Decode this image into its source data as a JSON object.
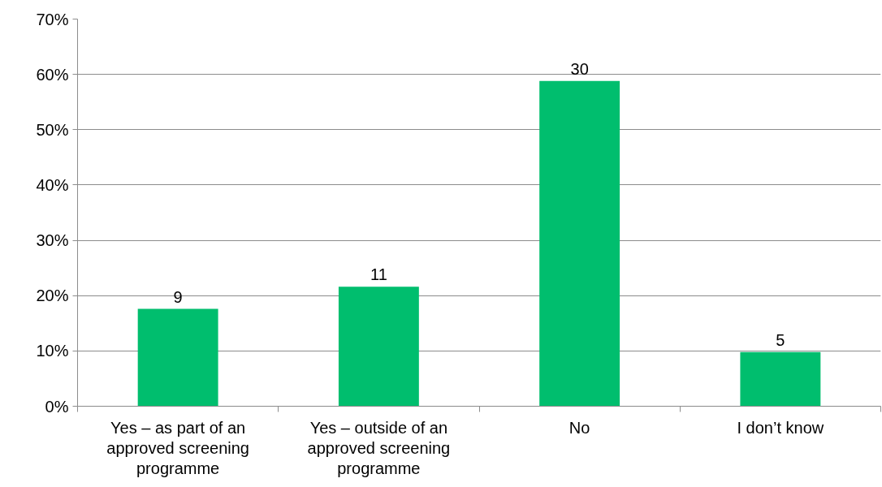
{
  "chart_data": {
    "type": "bar",
    "categories": [
      "Yes – as part of an approved screening programme",
      "Yes – outside of an approved screening programme",
      "No",
      "I don’t know"
    ],
    "values": [
      17.6,
      21.6,
      58.8,
      9.8
    ],
    "color": "#00be6e",
    "annotations": [
      {
        "text": "9",
        "x": "Yes – as part of an approved screening programme",
        "y": 17.6
      },
      {
        "text": "11",
        "x": "Yes – outside of an approved screening programme",
        "y": 21.6
      },
      {
        "text": "30",
        "x": "No",
        "y": 58.8
      },
      {
        "text": "5",
        "x": "I don’t know",
        "y": 9.8
      }
    ],
    "ylim": [
      0,
      70
    ],
    "yticks": [
      {
        "value": 0,
        "label": "0%"
      },
      {
        "value": 10,
        "label": "10%"
      },
      {
        "value": 20,
        "label": "20%"
      },
      {
        "value": 30,
        "label": "30%"
      },
      {
        "value": 40,
        "label": "40%"
      },
      {
        "value": 50,
        "label": "50%"
      },
      {
        "value": 60,
        "label": "60%"
      },
      {
        "value": 70,
        "label": "70%"
      }
    ],
    "grid": "y"
  }
}
